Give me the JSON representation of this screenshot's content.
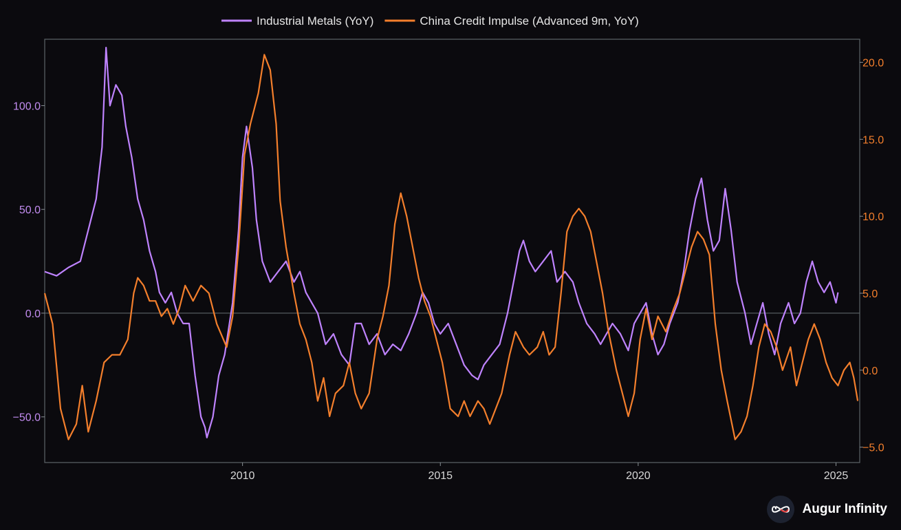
{
  "chart_data": {
    "type": "line",
    "title": "",
    "legend_position": "top-center",
    "grid": false,
    "x_axis": {
      "range": [
        2005.0,
        2025.6
      ],
      "ticks": [
        2010,
        2015,
        2020,
        2025
      ],
      "tick_labels": [
        "2010",
        "2015",
        "2020",
        "2025"
      ]
    },
    "y_left": {
      "range": [
        -72,
        132
      ],
      "ticks": [
        -50,
        0,
        50,
        100
      ],
      "tick_labels": [
        "−50.0",
        "0.0",
        "50.0",
        "100.0"
      ],
      "color": "#c28cf0",
      "zero_line": true
    },
    "y_right": {
      "range": [
        -6.0,
        21.5
      ],
      "ticks": [
        -5,
        0,
        5,
        10,
        15,
        20
      ],
      "tick_labels": [
        "−5.0",
        "0.0",
        "5.0",
        "10.0",
        "15.0",
        "20.0"
      ],
      "color": "#f47f2c"
    },
    "series": [
      {
        "name": "Industrial Metals (YoY)",
        "axis": "left",
        "color": "#bf83ff",
        "points": [
          [
            2005.0,
            20
          ],
          [
            2005.3,
            18
          ],
          [
            2005.6,
            22
          ],
          [
            2005.9,
            25
          ],
          [
            2006.1,
            40
          ],
          [
            2006.3,
            55
          ],
          [
            2006.45,
            80
          ],
          [
            2006.55,
            128
          ],
          [
            2006.65,
            100
          ],
          [
            2006.8,
            110
          ],
          [
            2006.95,
            105
          ],
          [
            2007.05,
            90
          ],
          [
            2007.2,
            75
          ],
          [
            2007.35,
            55
          ],
          [
            2007.5,
            45
          ],
          [
            2007.65,
            30
          ],
          [
            2007.8,
            20
          ],
          [
            2007.9,
            10
          ],
          [
            2008.05,
            5
          ],
          [
            2008.2,
            10
          ],
          [
            2008.35,
            0
          ],
          [
            2008.5,
            -5
          ],
          [
            2008.65,
            -5
          ],
          [
            2008.8,
            -30
          ],
          [
            2008.95,
            -50
          ],
          [
            2009.05,
            -55
          ],
          [
            2009.1,
            -60
          ],
          [
            2009.25,
            -50
          ],
          [
            2009.4,
            -30
          ],
          [
            2009.55,
            -20
          ],
          [
            2009.75,
            5
          ],
          [
            2009.9,
            40
          ],
          [
            2010.0,
            75
          ],
          [
            2010.1,
            90
          ],
          [
            2010.25,
            70
          ],
          [
            2010.35,
            45
          ],
          [
            2010.5,
            25
          ],
          [
            2010.7,
            15
          ],
          [
            2010.9,
            20
          ],
          [
            2011.1,
            25
          ],
          [
            2011.3,
            15
          ],
          [
            2011.45,
            20
          ],
          [
            2011.6,
            10
          ],
          [
            2011.75,
            5
          ],
          [
            2011.9,
            0
          ],
          [
            2012.1,
            -15
          ],
          [
            2012.3,
            -10
          ],
          [
            2012.5,
            -20
          ],
          [
            2012.7,
            -25
          ],
          [
            2012.85,
            -5
          ],
          [
            2013.0,
            -5
          ],
          [
            2013.2,
            -15
          ],
          [
            2013.4,
            -10
          ],
          [
            2013.6,
            -20
          ],
          [
            2013.8,
            -15
          ],
          [
            2014.0,
            -18
          ],
          [
            2014.2,
            -10
          ],
          [
            2014.4,
            0
          ],
          [
            2014.55,
            10
          ],
          [
            2014.7,
            5
          ],
          [
            2014.85,
            -5
          ],
          [
            2015.0,
            -10
          ],
          [
            2015.2,
            -5
          ],
          [
            2015.4,
            -15
          ],
          [
            2015.6,
            -25
          ],
          [
            2015.8,
            -30
          ],
          [
            2015.95,
            -32
          ],
          [
            2016.1,
            -25
          ],
          [
            2016.3,
            -20
          ],
          [
            2016.5,
            -15
          ],
          [
            2016.7,
            0
          ],
          [
            2016.85,
            15
          ],
          [
            2017.0,
            30
          ],
          [
            2017.1,
            35
          ],
          [
            2017.25,
            25
          ],
          [
            2017.4,
            20
          ],
          [
            2017.6,
            25
          ],
          [
            2017.8,
            30
          ],
          [
            2017.95,
            15
          ],
          [
            2018.15,
            20
          ],
          [
            2018.35,
            15
          ],
          [
            2018.5,
            5
          ],
          [
            2018.7,
            -5
          ],
          [
            2018.9,
            -10
          ],
          [
            2019.05,
            -15
          ],
          [
            2019.2,
            -10
          ],
          [
            2019.35,
            -5
          ],
          [
            2019.55,
            -10
          ],
          [
            2019.75,
            -18
          ],
          [
            2019.9,
            -5
          ],
          [
            2020.05,
            0
          ],
          [
            2020.2,
            5
          ],
          [
            2020.35,
            -10
          ],
          [
            2020.5,
            -20
          ],
          [
            2020.65,
            -15
          ],
          [
            2020.8,
            -5
          ],
          [
            2021.0,
            5
          ],
          [
            2021.15,
            20
          ],
          [
            2021.3,
            40
          ],
          [
            2021.45,
            55
          ],
          [
            2021.6,
            65
          ],
          [
            2021.75,
            45
          ],
          [
            2021.9,
            30
          ],
          [
            2022.05,
            35
          ],
          [
            2022.2,
            60
          ],
          [
            2022.35,
            40
          ],
          [
            2022.5,
            15
          ],
          [
            2022.7,
            0
          ],
          [
            2022.85,
            -15
          ],
          [
            2023.0,
            -5
          ],
          [
            2023.15,
            5
          ],
          [
            2023.3,
            -10
          ],
          [
            2023.45,
            -20
          ],
          [
            2023.6,
            -5
          ],
          [
            2023.8,
            5
          ],
          [
            2023.95,
            -5
          ],
          [
            2024.1,
            0
          ],
          [
            2024.25,
            15
          ],
          [
            2024.4,
            25
          ],
          [
            2024.55,
            15
          ],
          [
            2024.7,
            10
          ],
          [
            2024.85,
            15
          ],
          [
            2025.0,
            5
          ],
          [
            2025.05,
            10
          ]
        ]
      },
      {
        "name": "China Credit Impulse (Advanced 9m, YoY)",
        "axis": "right",
        "color": "#f47f2c",
        "points": [
          [
            2005.0,
            5.0
          ],
          [
            2005.2,
            3.0
          ],
          [
            2005.4,
            -2.5
          ],
          [
            2005.6,
            -4.5
          ],
          [
            2005.8,
            -3.5
          ],
          [
            2005.95,
            -1.0
          ],
          [
            2006.1,
            -4.0
          ],
          [
            2006.3,
            -2.0
          ],
          [
            2006.5,
            0.5
          ],
          [
            2006.7,
            1.0
          ],
          [
            2006.9,
            1.0
          ],
          [
            2007.1,
            2.0
          ],
          [
            2007.25,
            5.0
          ],
          [
            2007.35,
            6.0
          ],
          [
            2007.5,
            5.5
          ],
          [
            2007.65,
            4.5
          ],
          [
            2007.8,
            4.5
          ],
          [
            2007.95,
            3.5
          ],
          [
            2008.1,
            4.0
          ],
          [
            2008.25,
            3.0
          ],
          [
            2008.4,
            4.0
          ],
          [
            2008.55,
            5.5
          ],
          [
            2008.75,
            4.5
          ],
          [
            2008.95,
            5.5
          ],
          [
            2009.15,
            5.0
          ],
          [
            2009.35,
            3.0
          ],
          [
            2009.6,
            1.5
          ],
          [
            2009.75,
            3.5
          ],
          [
            2009.9,
            8.0
          ],
          [
            2010.05,
            14.0
          ],
          [
            2010.2,
            16.0
          ],
          [
            2010.4,
            18.0
          ],
          [
            2010.55,
            20.5
          ],
          [
            2010.7,
            19.5
          ],
          [
            2010.85,
            16.0
          ],
          [
            2010.95,
            11.0
          ],
          [
            2011.1,
            8.0
          ],
          [
            2011.3,
            5.0
          ],
          [
            2011.45,
            3.0
          ],
          [
            2011.6,
            2.0
          ],
          [
            2011.75,
            0.5
          ],
          [
            2011.9,
            -2.0
          ],
          [
            2012.05,
            -0.5
          ],
          [
            2012.2,
            -3.0
          ],
          [
            2012.35,
            -1.5
          ],
          [
            2012.55,
            -1.0
          ],
          [
            2012.7,
            0.5
          ],
          [
            2012.85,
            -1.5
          ],
          [
            2013.0,
            -2.5
          ],
          [
            2013.2,
            -1.5
          ],
          [
            2013.4,
            2.0
          ],
          [
            2013.55,
            3.5
          ],
          [
            2013.7,
            5.5
          ],
          [
            2013.85,
            9.5
          ],
          [
            2014.0,
            11.5
          ],
          [
            2014.15,
            10.0
          ],
          [
            2014.3,
            8.0
          ],
          [
            2014.45,
            6.0
          ],
          [
            2014.6,
            4.5
          ],
          [
            2014.75,
            3.5
          ],
          [
            2014.9,
            2.0
          ],
          [
            2015.05,
            0.5
          ],
          [
            2015.25,
            -2.5
          ],
          [
            2015.45,
            -3.0
          ],
          [
            2015.6,
            -2.0
          ],
          [
            2015.75,
            -3.0
          ],
          [
            2015.95,
            -2.0
          ],
          [
            2016.1,
            -2.5
          ],
          [
            2016.25,
            -3.5
          ],
          [
            2016.4,
            -2.5
          ],
          [
            2016.55,
            -1.5
          ],
          [
            2016.75,
            1.0
          ],
          [
            2016.9,
            2.5
          ],
          [
            2017.1,
            1.5
          ],
          [
            2017.25,
            1.0
          ],
          [
            2017.45,
            1.5
          ],
          [
            2017.6,
            2.5
          ],
          [
            2017.75,
            1.0
          ],
          [
            2017.9,
            1.5
          ],
          [
            2018.05,
            5.0
          ],
          [
            2018.2,
            9.0
          ],
          [
            2018.35,
            10.0
          ],
          [
            2018.5,
            10.5
          ],
          [
            2018.65,
            10.0
          ],
          [
            2018.8,
            9.0
          ],
          [
            2018.95,
            7.0
          ],
          [
            2019.1,
            5.0
          ],
          [
            2019.25,
            2.5
          ],
          [
            2019.45,
            0.0
          ],
          [
            2019.6,
            -1.5
          ],
          [
            2019.75,
            -3.0
          ],
          [
            2019.9,
            -1.5
          ],
          [
            2020.05,
            2.0
          ],
          [
            2020.2,
            4.0
          ],
          [
            2020.35,
            2.0
          ],
          [
            2020.5,
            3.5
          ],
          [
            2020.7,
            2.5
          ],
          [
            2020.9,
            4.0
          ],
          [
            2021.05,
            5.0
          ],
          [
            2021.2,
            6.5
          ],
          [
            2021.35,
            8.0
          ],
          [
            2021.5,
            9.0
          ],
          [
            2021.65,
            8.5
          ],
          [
            2021.8,
            7.5
          ],
          [
            2021.95,
            3.0
          ],
          [
            2022.1,
            0.0
          ],
          [
            2022.25,
            -2.0
          ],
          [
            2022.45,
            -4.5
          ],
          [
            2022.6,
            -4.0
          ],
          [
            2022.75,
            -3.0
          ],
          [
            2022.9,
            -1.0
          ],
          [
            2023.05,
            1.5
          ],
          [
            2023.2,
            3.0
          ],
          [
            2023.35,
            2.5
          ],
          [
            2023.5,
            1.5
          ],
          [
            2023.65,
            0.0
          ],
          [
            2023.85,
            1.5
          ],
          [
            2024.0,
            -1.0
          ],
          [
            2024.15,
            0.5
          ],
          [
            2024.3,
            2.0
          ],
          [
            2024.45,
            3.0
          ],
          [
            2024.6,
            2.0
          ],
          [
            2024.75,
            0.5
          ],
          [
            2024.9,
            -0.5
          ],
          [
            2025.05,
            -1.0
          ],
          [
            2025.2,
            0.0
          ],
          [
            2025.35,
            0.5
          ],
          [
            2025.45,
            -0.5
          ],
          [
            2025.55,
            -2.0
          ]
        ]
      }
    ]
  },
  "brand": {
    "name": "Augur Infinity",
    "icon": "infinity-icon"
  }
}
